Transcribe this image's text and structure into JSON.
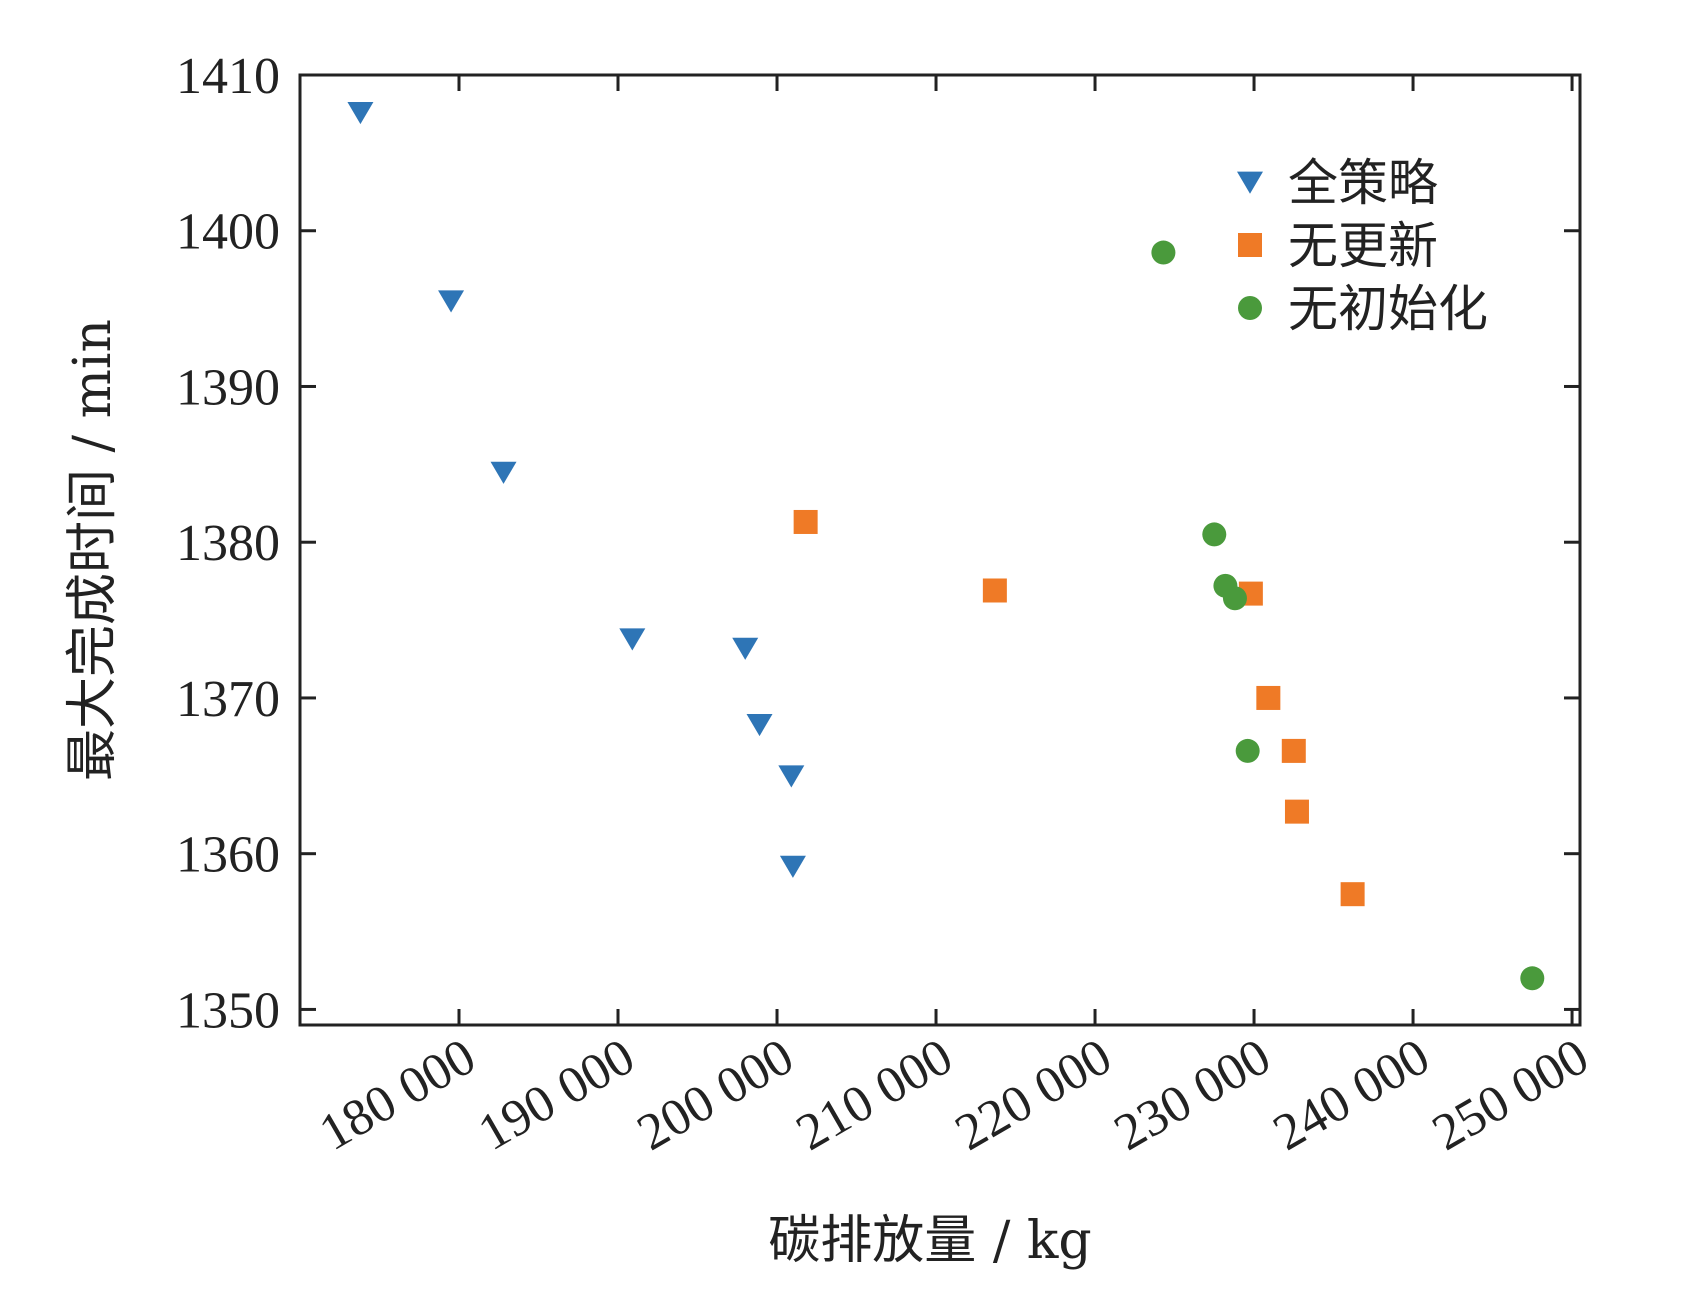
{
  "chart_data": {
    "type": "scatter",
    "title": "",
    "xlabel": "碳排放量 / kg",
    "ylabel": "最大完成时间 / min",
    "xlim": [
      170000,
      250500
    ],
    "ylim": [
      1349,
      1410
    ],
    "xticks": [
      180000,
      190000,
      200000,
      210000,
      220000,
      230000,
      240000,
      250000
    ],
    "xtick_labels": [
      "180 000",
      "190 000",
      "200 000",
      "210 000",
      "220 000",
      "230 000",
      "240 000",
      "250 000"
    ],
    "yticks": [
      1350,
      1360,
      1370,
      1380,
      1390,
      1400,
      1410
    ],
    "ytick_labels": [
      "1350",
      "1360",
      "1370",
      "1380",
      "1390",
      "1400",
      "1410"
    ],
    "grid": false,
    "legend_position": "top-right",
    "series": [
      {
        "name": "全策略",
        "marker": "triangle-down",
        "color": "#2e75b6",
        "points": [
          [
            173800,
            1407.6
          ],
          [
            179500,
            1395.5
          ],
          [
            182800,
            1384.5
          ],
          [
            190900,
            1373.8
          ],
          [
            198000,
            1373.2
          ],
          [
            198900,
            1368.3
          ],
          [
            200900,
            1365.0
          ],
          [
            201000,
            1359.2
          ]
        ]
      },
      {
        "name": "无更新",
        "marker": "square",
        "color": "#ef7a26",
        "points": [
          [
            201800,
            1381.3
          ],
          [
            213700,
            1376.9
          ],
          [
            229800,
            1376.7
          ],
          [
            230900,
            1370.0
          ],
          [
            232500,
            1366.6
          ],
          [
            232700,
            1362.7
          ],
          [
            236200,
            1357.4
          ]
        ]
      },
      {
        "name": "无初始化",
        "marker": "circle",
        "color": "#4a9a3c",
        "points": [
          [
            224300,
            1398.6
          ],
          [
            227500,
            1380.5
          ],
          [
            228200,
            1377.2
          ],
          [
            228800,
            1376.4
          ],
          [
            229600,
            1366.6
          ],
          [
            247500,
            1352.0
          ]
        ]
      }
    ]
  }
}
